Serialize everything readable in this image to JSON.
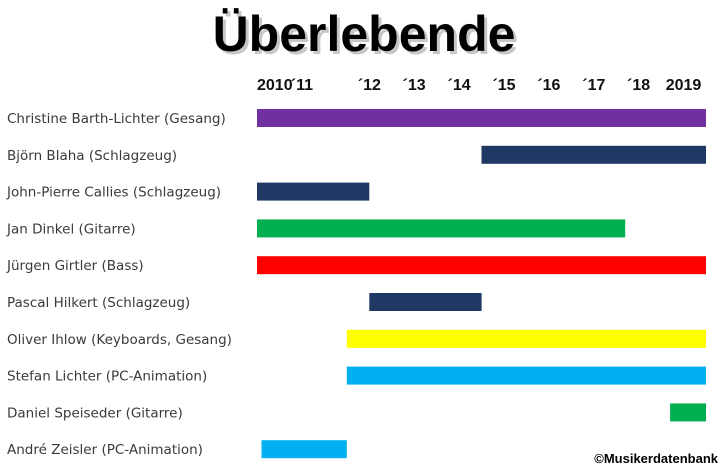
{
  "chart_data": {
    "type": "bar",
    "title": "Überlebende",
    "copyright": "©Musikerdatenbank",
    "xlim": [
      2010,
      2020
    ],
    "x_ticks": [
      {
        "label": "2010",
        "value": 2010
      },
      {
        "label": "´11",
        "value": 2011
      },
      {
        "label": "´12",
        "value": 2012.5
      },
      {
        "label": "´13",
        "value": 2013.5
      },
      {
        "label": "´14",
        "value": 2014.5
      },
      {
        "label": "´15",
        "value": 2015.5
      },
      {
        "label": "´16",
        "value": 2016.5
      },
      {
        "label": "´17",
        "value": 2017.5
      },
      {
        "label": "´18",
        "value": 2018.5
      },
      {
        "label": "2019",
        "value": 2019.5
      }
    ],
    "members": [
      {
        "name": "Christine Barth-Lichter (Gesang)",
        "start": 2010,
        "end": 2020,
        "color": "#7030A0"
      },
      {
        "name": "Björn Blaha (Schlagzeug)",
        "start": 2015,
        "end": 2020,
        "color": "#1F3864"
      },
      {
        "name": "John-Pierre Callies (Schlagzeug)",
        "start": 2010,
        "end": 2012.5,
        "color": "#1F3864"
      },
      {
        "name": "Jan Dinkel (Gitarre)",
        "start": 2010,
        "end": 2018.2,
        "color": "#00B050"
      },
      {
        "name": "Jürgen Girtler (Bass)",
        "start": 2010,
        "end": 2020,
        "color": "#FF0000"
      },
      {
        "name": "Pascal Hilkert (Schlagzeug)",
        "start": 2012.5,
        "end": 2015,
        "color": "#1F3864"
      },
      {
        "name": "Oliver Ihlow (Keyboards, Gesang)",
        "start": 2012,
        "end": 2020,
        "color": "#FFFF00"
      },
      {
        "name": "Stefan Lichter (PC-Animation)",
        "start": 2012,
        "end": 2020,
        "color": "#00B0F0"
      },
      {
        "name": "Daniel Speiseder (Gitarre)",
        "start": 2019.2,
        "end": 2020,
        "color": "#00B050"
      },
      {
        "name": "André Zeisler (PC-Animation)",
        "start": 2010.1,
        "end": 2012,
        "color": "#00B0F0"
      }
    ]
  }
}
